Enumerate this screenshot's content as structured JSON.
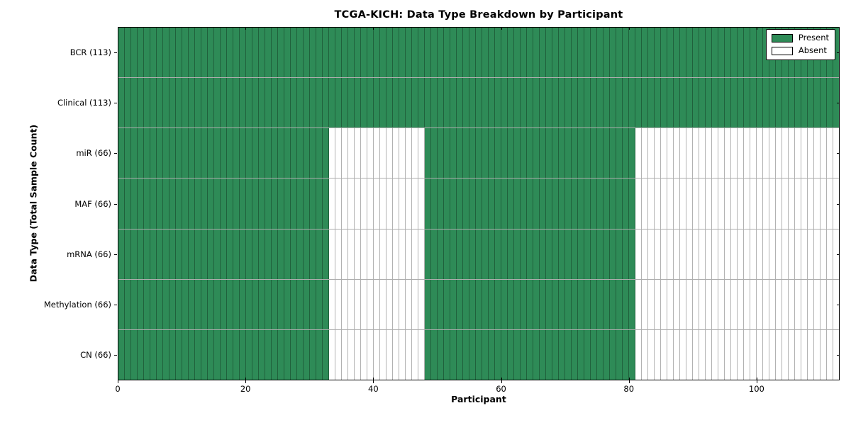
{
  "chart_data": {
    "type": "heatmap",
    "title": "TCGA-KICH: Data Type Breakdown by Participant",
    "xlabel": "Participant",
    "ylabel": "Data Type (Total Sample Count)",
    "x_range": [
      0,
      113
    ],
    "n_participants": 113,
    "x_ticks": [
      0,
      20,
      40,
      60,
      80,
      100
    ],
    "grid": "cell-borders",
    "legend_position": "upper right",
    "colors": {
      "present": "#2e8b57",
      "absent": "#ffffff",
      "cell_edge": "rgba(0,0,0,0.30)"
    },
    "legend": [
      {
        "label": "Present",
        "value": "present"
      },
      {
        "label": "Absent",
        "value": "absent"
      }
    ],
    "rows": [
      {
        "label": "BCR (113)",
        "name": "BCR",
        "total_samples": 113,
        "present_ranges": [
          [
            0,
            113
          ]
        ]
      },
      {
        "label": "Clinical (113)",
        "name": "Clinical",
        "total_samples": 113,
        "present_ranges": [
          [
            0,
            113
          ]
        ]
      },
      {
        "label": "miR (66)",
        "name": "miR",
        "total_samples": 66,
        "present_ranges": [
          [
            0,
            33
          ],
          [
            48,
            81
          ]
        ]
      },
      {
        "label": "MAF (66)",
        "name": "MAF",
        "total_samples": 66,
        "present_ranges": [
          [
            0,
            33
          ],
          [
            48,
            81
          ]
        ]
      },
      {
        "label": "mRNA (66)",
        "name": "mRNA",
        "total_samples": 66,
        "present_ranges": [
          [
            0,
            33
          ],
          [
            48,
            81
          ]
        ]
      },
      {
        "label": "Methylation (66)",
        "name": "Methylation",
        "total_samples": 66,
        "present_ranges": [
          [
            0,
            33
          ],
          [
            48,
            81
          ]
        ]
      },
      {
        "label": "CN (66)",
        "name": "CN",
        "total_samples": 66,
        "present_ranges": [
          [
            0,
            33
          ],
          [
            48,
            81
          ]
        ]
      }
    ]
  }
}
